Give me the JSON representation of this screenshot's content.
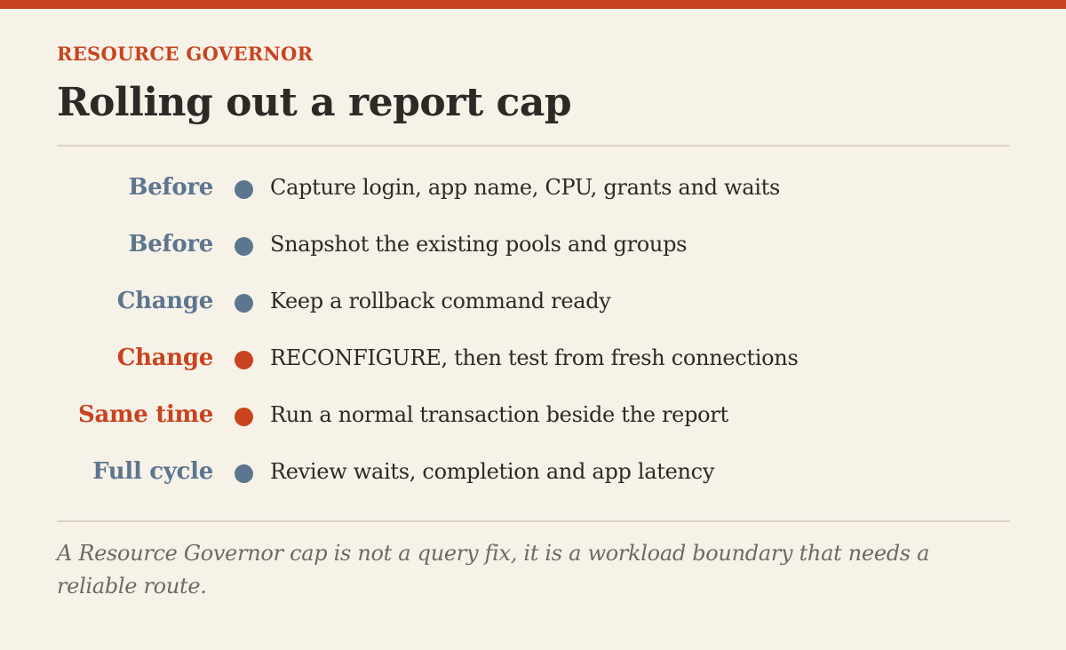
{
  "colors": {
    "background": "#f7f2e8",
    "accent": "#c8431f",
    "muted": "#5c7690",
    "text": "#2b2a27",
    "rule": "#ddd2c2",
    "footnote": "#6e6a63"
  },
  "header": {
    "eyebrow": "RESOURCE GOVERNOR",
    "title": "Rolling out a report cap"
  },
  "steps": [
    {
      "label": "Before",
      "text": "Capture login, app name, CPU, grants and waits",
      "color": "#5c7690"
    },
    {
      "label": "Before",
      "text": "Snapshot the existing pools and groups",
      "color": "#5c7690"
    },
    {
      "label": "Change",
      "text": "Keep a rollback command ready",
      "color": "#5c7690"
    },
    {
      "label": "Change",
      "text": "RECONFIGURE, then test from fresh connections",
      "color": "#c8431f"
    },
    {
      "label": "Same time",
      "text": "Run a normal transaction beside the report",
      "color": "#c8431f"
    },
    {
      "label": "Full cycle",
      "text": "Review waits, completion and app latency",
      "color": "#5c7690"
    }
  ],
  "footnote": "A Resource Governor cap is not a query fix, it is a workload boundary that needs a reliable route."
}
